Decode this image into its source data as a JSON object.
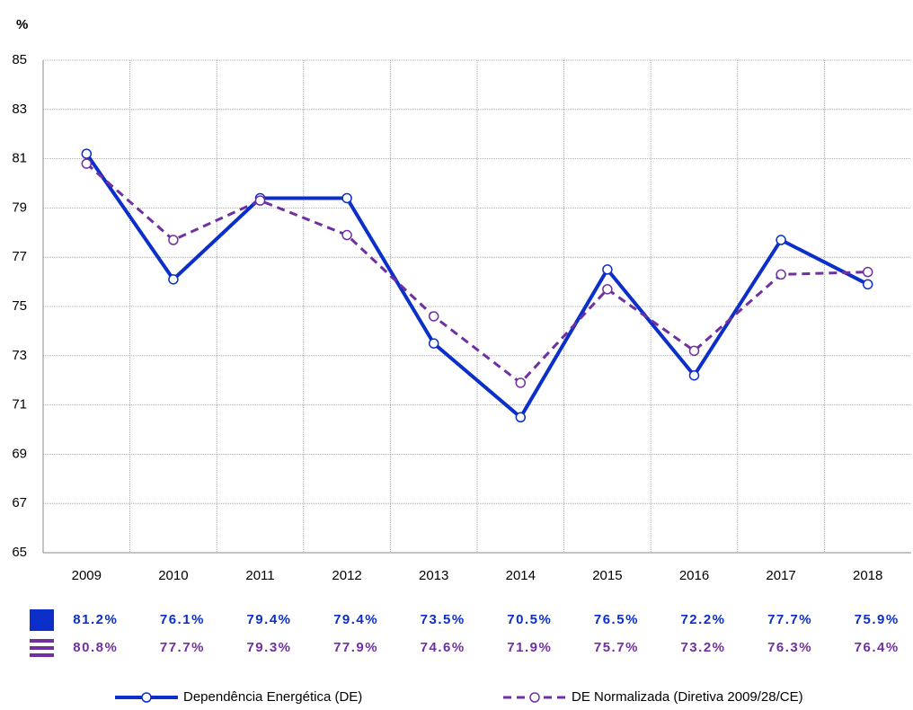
{
  "chart_data": {
    "type": "line",
    "y_label": "%",
    "categories": [
      "2009",
      "2010",
      "2011",
      "2012",
      "2013",
      "2014",
      "2015",
      "2016",
      "2017",
      "2018"
    ],
    "series": [
      {
        "name": "Dependência Energética (DE)",
        "color": "#0b2fc8",
        "dash": false,
        "values": [
          81.2,
          76.1,
          79.4,
          79.4,
          73.5,
          70.5,
          76.5,
          72.2,
          77.7,
          75.9
        ],
        "value_labels": [
          "81.2%",
          "76.1%",
          "79.4%",
          "79.4%",
          "73.5%",
          "70.5%",
          "76.5%",
          "72.2%",
          "77.7%",
          "75.9%"
        ]
      },
      {
        "name": "DE Normalizada (Diretiva 2009/28/CE)",
        "color": "#7030a0",
        "dash": true,
        "values": [
          80.8,
          77.7,
          79.3,
          77.9,
          74.6,
          71.9,
          75.7,
          73.2,
          76.3,
          76.4
        ],
        "value_labels": [
          "80.8%",
          "77.7%",
          "79.3%",
          "77.9%",
          "74.6%",
          "71.9%",
          "75.7%",
          "73.2%",
          "76.3%",
          "76.4%"
        ]
      }
    ],
    "ylim": [
      65,
      85
    ],
    "yticks": [
      65,
      67,
      69,
      71,
      73,
      75,
      77,
      79,
      81,
      83,
      85
    ],
    "grid": true
  }
}
